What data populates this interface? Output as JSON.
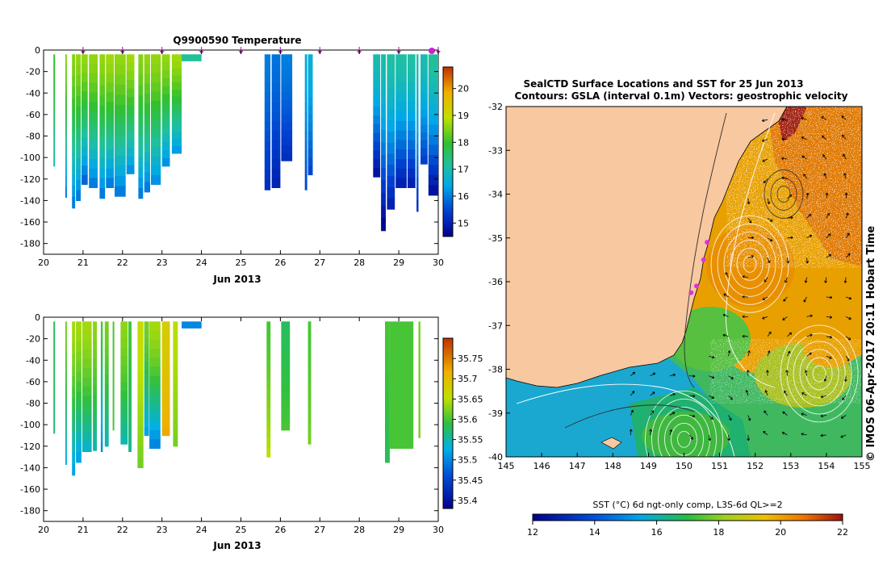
{
  "chart_data": [
    {
      "type": "heatmap",
      "panel": "temperature-section",
      "title": "Q9900590  Temperature",
      "xlabel": "Jun 2013",
      "ylabel": "",
      "xlim": [
        20,
        30
      ],
      "ylim": [
        -190,
        0
      ],
      "xticks": [
        "20",
        "21",
        "22",
        "23",
        "24",
        "25",
        "26",
        "27",
        "28",
        "29",
        "30"
      ],
      "yticks": [
        "0",
        "-20",
        "-40",
        "-60",
        "-80",
        "-100",
        "-120",
        "-140",
        "-160",
        "-180"
      ],
      "colorbar": {
        "ticks": [
          "15",
          "16",
          "17",
          "18",
          "19",
          "20"
        ],
        "range": [
          14.5,
          20.8
        ]
      },
      "surface_markers_x": [
        21,
        22,
        23,
        24,
        25,
        26,
        27,
        28,
        29,
        30
      ],
      "profiles": [
        {
          "x": 20.25,
          "w": 0.03,
          "depth": 108,
          "top": 18,
          "bottom": 17
        },
        {
          "x": 20.55,
          "w": 0.03,
          "depth": 137,
          "top": 18.5,
          "bottom": 16
        },
        {
          "x": 20.72,
          "w": 0.08,
          "depth": 147,
          "top": 18.5,
          "bottom": 16
        },
        {
          "x": 20.82,
          "w": 0.12,
          "depth": 140,
          "top": 18.6,
          "bottom": 16
        },
        {
          "x": 20.96,
          "w": 0.16,
          "depth": 125,
          "top": 18.6,
          "bottom": 15.8
        },
        {
          "x": 21.15,
          "w": 0.22,
          "depth": 128,
          "top": 18.6,
          "bottom": 16
        },
        {
          "x": 21.42,
          "w": 0.14,
          "depth": 138,
          "top": 18.6,
          "bottom": 16
        },
        {
          "x": 21.58,
          "w": 0.2,
          "depth": 128,
          "top": 18.7,
          "bottom": 16
        },
        {
          "x": 21.8,
          "w": 0.28,
          "depth": 136,
          "top": 18.6,
          "bottom": 16
        },
        {
          "x": 22.1,
          "w": 0.2,
          "depth": 115,
          "top": 18.7,
          "bottom": 16.2
        },
        {
          "x": 22.4,
          "w": 0.12,
          "depth": 138,
          "top": 18.5,
          "bottom": 16
        },
        {
          "x": 22.55,
          "w": 0.15,
          "depth": 132,
          "top": 18.6,
          "bottom": 16
        },
        {
          "x": 22.72,
          "w": 0.25,
          "depth": 125,
          "top": 18.6,
          "bottom": 16.2
        },
        {
          "x": 23.0,
          "w": 0.2,
          "depth": 108,
          "top": 18.6,
          "bottom": 16.2
        },
        {
          "x": 23.25,
          "w": 0.25,
          "depth": 96,
          "top": 18.7,
          "bottom": 16.3
        },
        {
          "x": 23.5,
          "w": 0.5,
          "depth": 10,
          "top": 17.2,
          "bottom": 17.2
        },
        {
          "x": 25.6,
          "w": 0.15,
          "depth": 130,
          "top": 16,
          "bottom": 15.2
        },
        {
          "x": 25.78,
          "w": 0.22,
          "depth": 128,
          "top": 15.9,
          "bottom": 15
        },
        {
          "x": 26.02,
          "w": 0.28,
          "depth": 103,
          "top": 16,
          "bottom": 15.2
        },
        {
          "x": 26.62,
          "w": 0.06,
          "depth": 130,
          "top": 16.5,
          "bottom": 15.5
        },
        {
          "x": 26.7,
          "w": 0.12,
          "depth": 116,
          "top": 16.6,
          "bottom": 15.5
        },
        {
          "x": 28.35,
          "w": 0.18,
          "depth": 118,
          "top": 17,
          "bottom": 14.8
        },
        {
          "x": 28.55,
          "w": 0.12,
          "depth": 168,
          "top": 17,
          "bottom": 14.6
        },
        {
          "x": 28.7,
          "w": 0.2,
          "depth": 148,
          "top": 17.1,
          "bottom": 15
        },
        {
          "x": 28.92,
          "w": 0.28,
          "depth": 128,
          "top": 17.1,
          "bottom": 15
        },
        {
          "x": 29.22,
          "w": 0.2,
          "depth": 128,
          "top": 17.1,
          "bottom": 15
        },
        {
          "x": 29.45,
          "w": 0.05,
          "depth": 150,
          "top": 17,
          "bottom": 15.2
        },
        {
          "x": 29.55,
          "w": 0.18,
          "depth": 106,
          "top": 17,
          "bottom": 15.4
        },
        {
          "x": 29.75,
          "w": 0.25,
          "depth": 135,
          "top": 17.2,
          "bottom": 14.8
        }
      ]
    },
    {
      "type": "heatmap",
      "panel": "salinity-section",
      "title": "",
      "xlabel": "Jun 2013",
      "xlim": [
        20,
        30
      ],
      "ylim": [
        -190,
        0
      ],
      "xticks": [
        "20",
        "21",
        "22",
        "23",
        "24",
        "25",
        "26",
        "27",
        "28",
        "29",
        "30"
      ],
      "yticks": [
        "0",
        "-20",
        "-40",
        "-60",
        "-80",
        "-100",
        "-120",
        "-140",
        "-160",
        "-180"
      ],
      "colorbar": {
        "ticks": [
          "35.4",
          "35.45",
          "35.5",
          "35.55",
          "35.6",
          "35.65",
          "35.7",
          "35.75"
        ],
        "range": [
          35.38,
          35.8
        ]
      },
      "profiles": [
        {
          "x": 20.25,
          "w": 0.03,
          "depth": 108,
          "top": 35.58,
          "bottom": 35.57
        },
        {
          "x": 20.55,
          "w": 0.03,
          "depth": 137,
          "top": 35.62,
          "bottom": 35.53
        },
        {
          "x": 20.72,
          "w": 0.08,
          "depth": 147,
          "top": 35.64,
          "bottom": 35.52
        },
        {
          "x": 20.82,
          "w": 0.14,
          "depth": 135,
          "top": 35.64,
          "bottom": 35.52
        },
        {
          "x": 20.98,
          "w": 0.24,
          "depth": 125,
          "top": 35.64,
          "bottom": 35.54
        },
        {
          "x": 21.25,
          "w": 0.1,
          "depth": 124,
          "top": 35.63,
          "bottom": 35.55
        },
        {
          "x": 21.45,
          "w": 0.05,
          "depth": 125,
          "top": 35.6,
          "bottom": 35.5
        },
        {
          "x": 21.55,
          "w": 0.1,
          "depth": 120,
          "top": 35.62,
          "bottom": 35.55
        },
        {
          "x": 21.75,
          "w": 0.02,
          "depth": 105,
          "top": 35.6,
          "bottom": 35.6
        },
        {
          "x": 21.95,
          "w": 0.18,
          "depth": 118,
          "top": 35.63,
          "bottom": 35.55
        },
        {
          "x": 22.15,
          "w": 0.08,
          "depth": 125,
          "top": 35.6,
          "bottom": 35.56
        },
        {
          "x": 22.38,
          "w": 0.15,
          "depth": 140,
          "top": 35.66,
          "bottom": 35.62
        },
        {
          "x": 22.55,
          "w": 0.12,
          "depth": 110,
          "top": 35.62,
          "bottom": 35.52
        },
        {
          "x": 22.68,
          "w": 0.28,
          "depth": 122,
          "top": 35.64,
          "bottom": 35.5
        },
        {
          "x": 23.0,
          "w": 0.2,
          "depth": 110,
          "top": 35.68,
          "bottom": 35.72
        },
        {
          "x": 23.28,
          "w": 0.12,
          "depth": 120,
          "top": 35.65,
          "bottom": 35.62
        },
        {
          "x": 23.5,
          "w": 0.5,
          "depth": 10,
          "top": 35.5,
          "bottom": 35.5
        },
        {
          "x": 25.65,
          "w": 0.1,
          "depth": 130,
          "top": 35.6,
          "bottom": 35.65
        },
        {
          "x": 26.02,
          "w": 0.22,
          "depth": 105,
          "top": 35.58,
          "bottom": 35.6
        },
        {
          "x": 26.7,
          "w": 0.08,
          "depth": 118,
          "top": 35.6,
          "bottom": 35.62
        },
        {
          "x": 28.65,
          "w": 0.12,
          "depth": 135,
          "top": 35.6,
          "bottom": 35.58
        },
        {
          "x": 28.77,
          "w": 0.6,
          "depth": 122,
          "top": 35.6,
          "bottom": 35.6
        },
        {
          "x": 29.5,
          "w": 0.05,
          "depth": 112,
          "top": 35.62,
          "bottom": 35.62
        }
      ]
    },
    {
      "type": "heatmap",
      "panel": "sst-map",
      "title": "SealCTD Surface Locations and SST for 25 Jun 2013",
      "subtitle": "Contours: GSLA (interval 0.1m) Vectors: geostrophic velocity",
      "xlim": [
        145,
        155
      ],
      "ylim": [
        -40,
        -32
      ],
      "xticks": [
        "145",
        "146",
        "147",
        "148",
        "149",
        "150",
        "151",
        "152",
        "153",
        "154",
        "155"
      ],
      "yticks": [
        "-32",
        "-33",
        "-34",
        "-35",
        "-36",
        "-37",
        "-38",
        "-39",
        "-40"
      ],
      "colorbar": {
        "label": "SST (°C) 6d ngt-only comp, L3S-6d QL>=2",
        "ticks": [
          "12",
          "14",
          "16",
          "18",
          "20",
          "22"
        ],
        "range": [
          12,
          22
        ]
      },
      "side_label": "© IMOS 06-Apr-2017 20:11 Hobart Time",
      "seal_locations": [
        [
          150.65,
          -35.1
        ],
        [
          150.55,
          -35.5
        ],
        [
          150.35,
          -36.1
        ],
        [
          150.2,
          -36.25
        ]
      ],
      "eddies": [
        {
          "lon": 151.85,
          "lat": -35.6,
          "kind": "warm"
        },
        {
          "lon": 150.0,
          "lat": -39.6,
          "kind": "warm"
        },
        {
          "lon": 153.8,
          "lat": -38.1,
          "kind": "warm"
        },
        {
          "lon": 152.8,
          "lat": -34.0,
          "kind": "cold"
        }
      ]
    }
  ]
}
